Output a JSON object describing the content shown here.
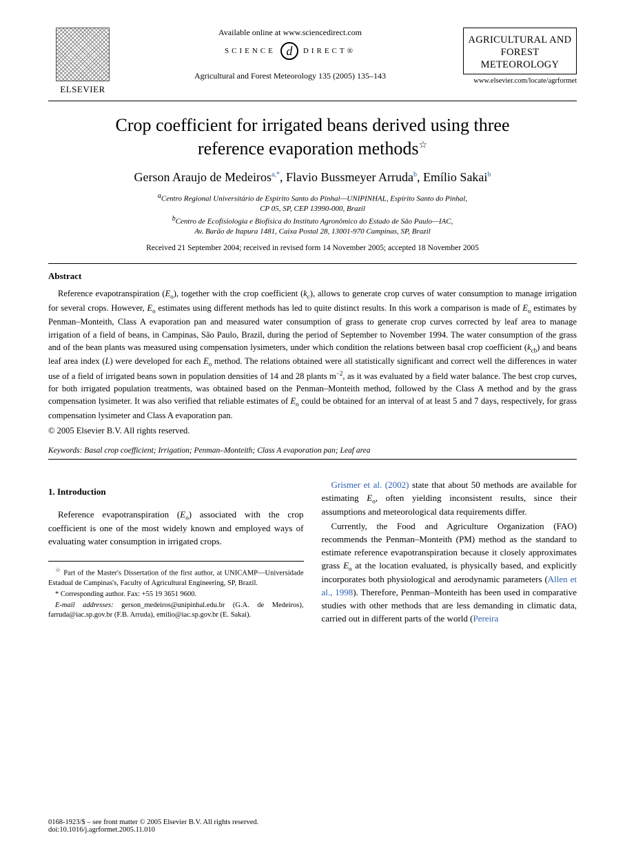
{
  "header": {
    "availableText": "Available online at www.sciencedirect.com",
    "scienceDirect": {
      "left": "SCIENCE",
      "right": "DIRECT®",
      "d": "d"
    },
    "elsevierName": "ELSEVIER",
    "journalCitation": "Agricultural and Forest Meteorology 135 (2005) 135–143",
    "journalBoxTitle": "AGRICULTURAL AND FOREST METEOROLOGY",
    "journalUrl": "www.elsevier.com/locate/agrformet"
  },
  "title": {
    "line1": "Crop coefficient for irrigated beans derived using three",
    "line2": "reference evaporation methods",
    "starMark": "☆"
  },
  "authors": {
    "a1_name": "Gerson Araujo de Medeiros",
    "a1_mark": "a,",
    "a1_star": "*",
    "a2_name": ", Flavio Bussmeyer Arruda",
    "a2_mark": "b",
    "a3_name": ", Emílio Sakai",
    "a3_mark": "b"
  },
  "affiliations": {
    "a_line1": "Centro Regional Universitário de Espírito Santo do Pinhal—UNIPINHAL, Espírito Santo do Pinhal,",
    "a_line2": "CP 05, SP, CEP 13990-000, Brazil",
    "b_line1": "Centro de Ecofisiologia e Biofísica do Instituto Agronômico do Estado de São Paulo—IAC,",
    "b_line2": "Av. Barão de Itapura 1481, Caixa Postal 28, 13001-970 Campinas, SP, Brazil",
    "a_sup": "a",
    "b_sup": "b"
  },
  "dates": "Received 21 September 2004; received in revised form 14 November 2005; accepted 18 November 2005",
  "abstract": {
    "heading": "Abstract",
    "body_html": "Reference evapotranspiration (<i>E</i><span class=\"sub\">o</span>), together with the crop coefficient (<i>k</i><span class=\"sub\">c</span>), allows to generate crop curves of water consumption to manage irrigation for several crops. However, <i>E</i><span class=\"sub\">o</span> estimates using different methods has led to quite distinct results. In this work a comparison is made of <i>E</i><span class=\"sub\">o</span> estimates by Penman–Monteith, Class A evaporation pan and measured water consumption of grass to generate crop curves corrected by leaf area to manage irrigation of a field of beans, in Campinas, São Paulo, Brazil, during the period of September to November 1994. The water consumption of the grass and of the bean plants was measured using compensation lysimeters, under which condition the relations between basal crop coefficient (<i>k</i><span class=\"sub\">cb</span>) and beans leaf area index (<i>L</i>) were developed for each <i>E</i><span class=\"sub\">o</span> method. The relations obtained were all statistically significant and correct well the differences in water use of a field of irrigated beans sown in population densities of 14 and 28 plants m<span class=\"supm\">−2</span>, as it was evaluated by a field water balance. The best crop curves, for both irrigated population treatments, was obtained based on the Penman–Monteith method, followed by the Class A method and by the grass compensation lysimeter. It was also verified that reliable estimates of <i>E</i><span class=\"sub\">o</span> could be obtained for an interval of at least 5 and 7 days, respectively, for grass compensation lysimeter and Class A evaporation pan.",
    "copyright": "© 2005 Elsevier B.V. All rights reserved."
  },
  "keywords": {
    "label": "Keywords:",
    "text": " Basal crop coefficient; Irrigation; Penman–Monteith; Class A evaporation pan; Leaf area"
  },
  "intro": {
    "heading": "1.  Introduction",
    "left_p1_html": "Reference evapotranspiration (<i>E</i><span class=\"sub\">o</span>) associated with the crop coefficient is one of the most widely known and employed ways of evaluating water consumption in irrigated crops.",
    "right_p1_html": "<span class=\"blue\">Grismer et al. (2002)</span> state that about 50 methods are available for estimating <i>E</i><span class=\"sub\">o</span>, often yielding inconsistent results, since their assumptions and meteorological data requirements differ.",
    "right_p2_html": "Currently, the Food and Agriculture Organization (FAO) recommends the Penman–Monteith (PM) method as the standard to estimate reference evapotranspiration because it closely approximates grass <i>E</i><span class=\"sub\">o</span> at the location evaluated, is physically based, and explicitly incorporates both physiological and aerodynamic parameters (<span class=\"blue\">Allen et al., 1998</span>). Therefore, Penman–Monteith has been used in comparative studies with other methods that are less demanding in climatic data, carried out in different parts of the world (<span class=\"blue\">Pereira</span>"
  },
  "footnotes": {
    "fn_star_html": "<span class=\"fn-star\">☆</span> Part of the Master's Dissertation of the first author, at UNICAMP—Universidade Estadual de Campinas's, Faculty of Agricultural Engineering, SP, Brazil.",
    "fn_corr": "* Corresponding author. Fax: +55 19 3651 9600.",
    "fn_email_label": "E-mail addresses:",
    "fn_emails": " gerson_medeiros@unipinhal.edu.br (G.A. de Medeiros), farruda@iac.sp.gov.br (F.B. Arruda), emilio@iac.sp.gov.br (E. Sakai)."
  },
  "footer": {
    "line1": "0168-1923/$ – see front matter © 2005 Elsevier B.V. All rights reserved.",
    "line2": "doi:10.1016/j.agrformet.2005.11.010"
  },
  "colors": {
    "text": "#000000",
    "link": "#2a5db0",
    "background": "#ffffff"
  },
  "typography": {
    "title_pt": 26,
    "authors_pt": 18,
    "body_pt": 13,
    "abstract_pt": 12.5,
    "affil_pt": 11,
    "footnote_pt": 10.5
  }
}
